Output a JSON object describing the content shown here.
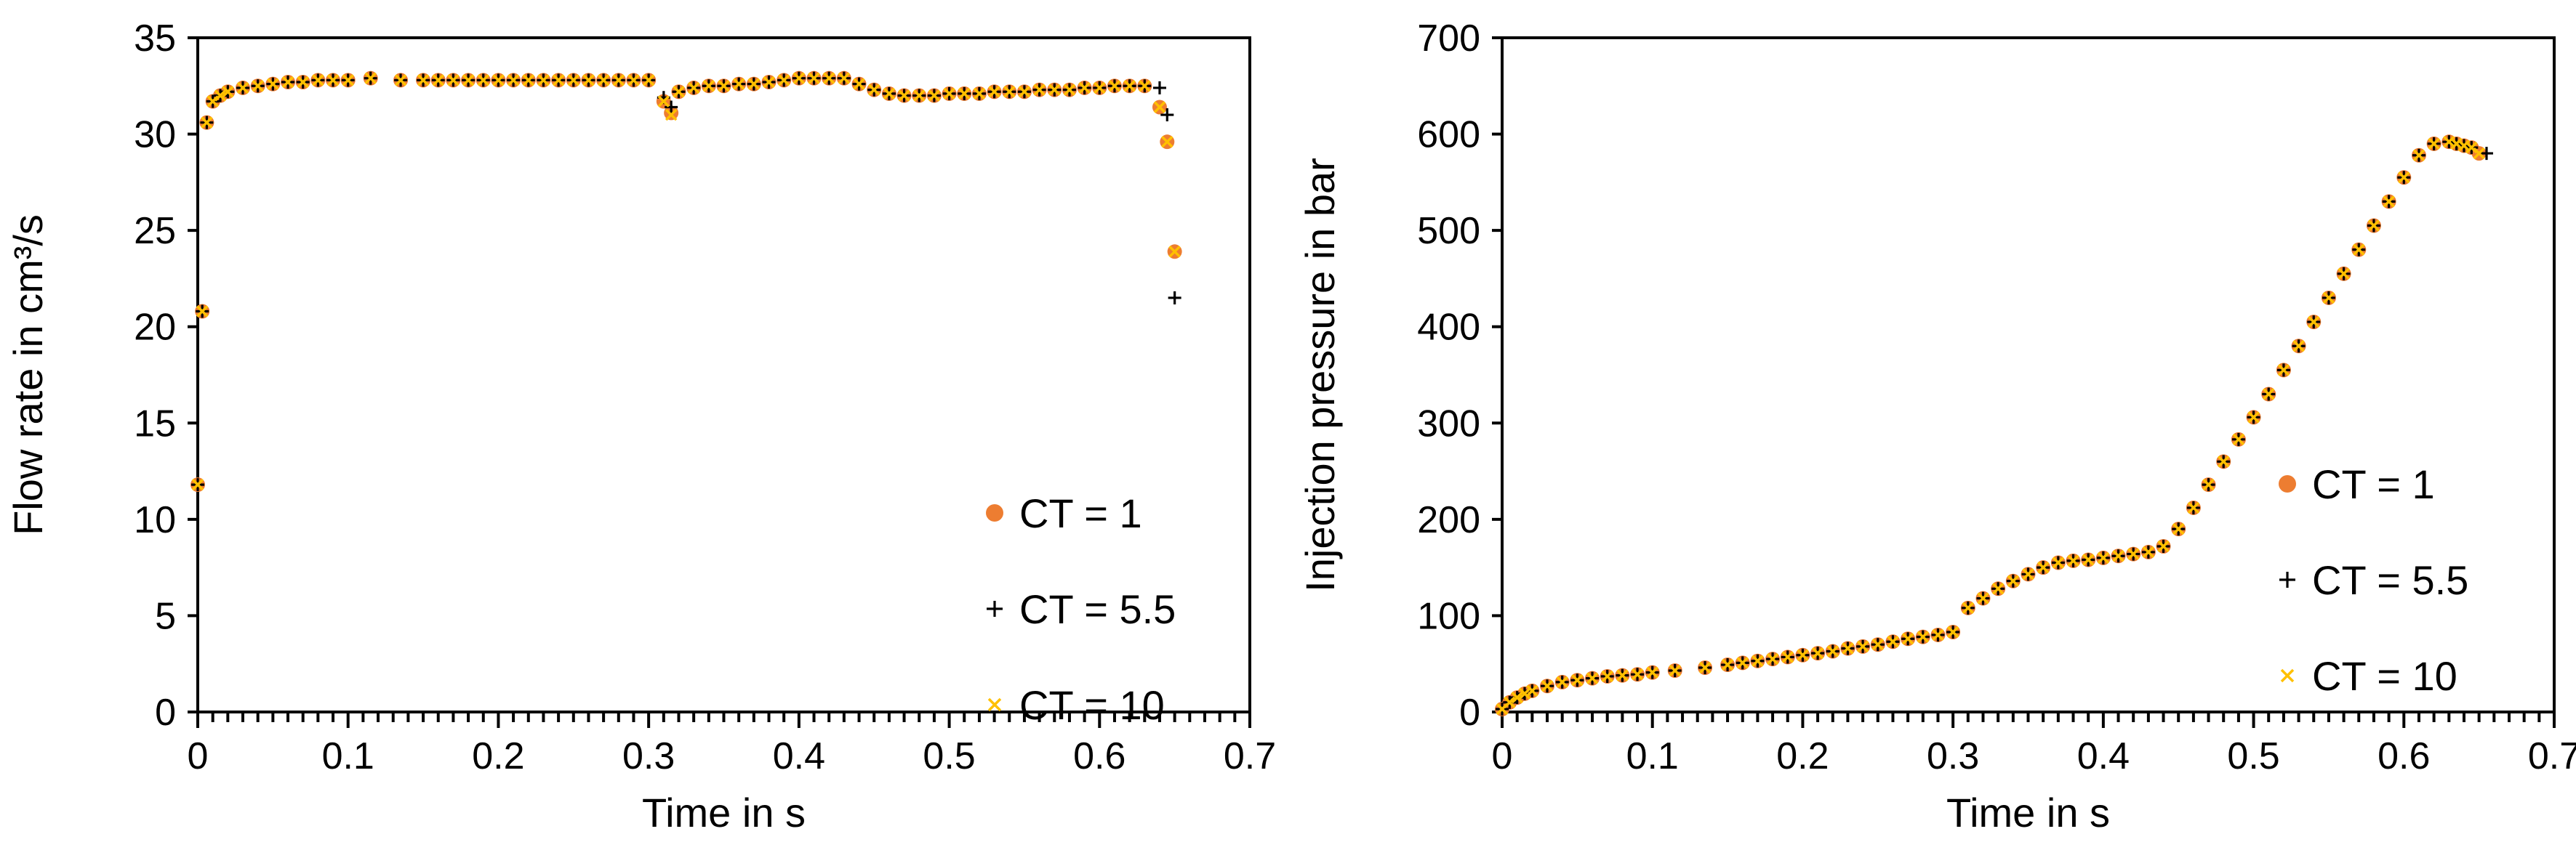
{
  "chart_data": [
    {
      "type": "scatter",
      "xlabel": "Time in s",
      "ylabel": "Flow rate in cm³/s",
      "xlim": [
        0,
        0.7
      ],
      "ylim": [
        0,
        35
      ],
      "xticks": [
        "0",
        "0.1",
        "0.2",
        "0.3",
        "0.4",
        "0.5",
        "0.6",
        "0.7"
      ],
      "yticks": [
        "0",
        "5",
        "10",
        "15",
        "20",
        "25",
        "30",
        "35"
      ],
      "legend": "bottom-right",
      "grid": false,
      "series": [
        {
          "name": "CT = 1",
          "marker": "circle",
          "color": "#ED7D31",
          "x": [
            0.0,
            0.003,
            0.006,
            0.01,
            0.015,
            0.02,
            0.03,
            0.04,
            0.05,
            0.06,
            0.07,
            0.08,
            0.09,
            0.1,
            0.115,
            0.135,
            0.15,
            0.16,
            0.17,
            0.18,
            0.19,
            0.2,
            0.21,
            0.22,
            0.23,
            0.24,
            0.25,
            0.26,
            0.27,
            0.28,
            0.29,
            0.3,
            0.31,
            0.315,
            0.32,
            0.33,
            0.34,
            0.35,
            0.36,
            0.37,
            0.38,
            0.39,
            0.4,
            0.41,
            0.42,
            0.43,
            0.44,
            0.45,
            0.46,
            0.47,
            0.48,
            0.49,
            0.5,
            0.51,
            0.52,
            0.53,
            0.54,
            0.55,
            0.56,
            0.57,
            0.58,
            0.59,
            0.6,
            0.61,
            0.62,
            0.63,
            0.64,
            0.645,
            0.65
          ],
          "y": [
            11.8,
            20.8,
            30.6,
            31.7,
            32.0,
            32.2,
            32.4,
            32.5,
            32.6,
            32.7,
            32.7,
            32.8,
            32.8,
            32.8,
            32.9,
            32.8,
            32.8,
            32.8,
            32.8,
            32.8,
            32.8,
            32.8,
            32.8,
            32.8,
            32.8,
            32.8,
            32.8,
            32.8,
            32.8,
            32.8,
            32.8,
            32.8,
            31.7,
            31.1,
            32.2,
            32.4,
            32.5,
            32.5,
            32.6,
            32.6,
            32.7,
            32.8,
            32.9,
            32.9,
            32.9,
            32.9,
            32.6,
            32.3,
            32.1,
            32.0,
            32.0,
            32.0,
            32.1,
            32.1,
            32.1,
            32.2,
            32.2,
            32.2,
            32.3,
            32.3,
            32.3,
            32.4,
            32.4,
            32.5,
            32.5,
            32.5,
            31.4,
            29.6,
            23.9
          ]
        },
        {
          "name": "CT = 5.5",
          "marker": "plus",
          "color": "#000000",
          "x": [
            0.0,
            0.003,
            0.006,
            0.01,
            0.015,
            0.02,
            0.03,
            0.04,
            0.05,
            0.06,
            0.07,
            0.08,
            0.09,
            0.1,
            0.115,
            0.135,
            0.15,
            0.16,
            0.17,
            0.18,
            0.19,
            0.2,
            0.21,
            0.22,
            0.23,
            0.24,
            0.25,
            0.26,
            0.27,
            0.28,
            0.29,
            0.3,
            0.31,
            0.315,
            0.32,
            0.33,
            0.34,
            0.35,
            0.36,
            0.37,
            0.38,
            0.39,
            0.4,
            0.41,
            0.42,
            0.43,
            0.44,
            0.45,
            0.46,
            0.47,
            0.48,
            0.49,
            0.5,
            0.51,
            0.52,
            0.53,
            0.54,
            0.55,
            0.56,
            0.57,
            0.58,
            0.59,
            0.6,
            0.61,
            0.62,
            0.63,
            0.64,
            0.645,
            0.65
          ],
          "y": [
            11.8,
            20.8,
            30.6,
            31.7,
            32.0,
            32.2,
            32.4,
            32.5,
            32.6,
            32.7,
            32.7,
            32.8,
            32.8,
            32.8,
            32.9,
            32.8,
            32.8,
            32.8,
            32.8,
            32.8,
            32.8,
            32.8,
            32.8,
            32.8,
            32.8,
            32.8,
            32.8,
            32.8,
            32.8,
            32.8,
            32.8,
            32.8,
            31.9,
            31.4,
            32.2,
            32.4,
            32.5,
            32.5,
            32.6,
            32.6,
            32.7,
            32.8,
            32.9,
            32.9,
            32.9,
            32.9,
            32.6,
            32.3,
            32.1,
            32.0,
            32.0,
            32.0,
            32.1,
            32.1,
            32.1,
            32.2,
            32.2,
            32.2,
            32.3,
            32.3,
            32.3,
            32.4,
            32.4,
            32.5,
            32.5,
            32.5,
            32.4,
            31.0,
            21.5
          ]
        },
        {
          "name": "CT = 10",
          "marker": "x",
          "color": "#FFC000",
          "x": [
            0.0,
            0.003,
            0.006,
            0.01,
            0.015,
            0.02,
            0.03,
            0.04,
            0.05,
            0.06,
            0.07,
            0.08,
            0.09,
            0.1,
            0.115,
            0.135,
            0.15,
            0.16,
            0.17,
            0.18,
            0.19,
            0.2,
            0.21,
            0.22,
            0.23,
            0.24,
            0.25,
            0.26,
            0.27,
            0.28,
            0.29,
            0.3,
            0.31,
            0.315,
            0.32,
            0.33,
            0.34,
            0.35,
            0.36,
            0.37,
            0.38,
            0.39,
            0.4,
            0.41,
            0.42,
            0.43,
            0.44,
            0.45,
            0.46,
            0.47,
            0.48,
            0.49,
            0.5,
            0.51,
            0.52,
            0.53,
            0.54,
            0.55,
            0.56,
            0.57,
            0.58,
            0.59,
            0.6,
            0.61,
            0.62,
            0.63,
            0.64,
            0.645,
            0.65
          ],
          "y": [
            11.8,
            20.8,
            30.6,
            31.7,
            32.0,
            32.2,
            32.4,
            32.5,
            32.6,
            32.7,
            32.7,
            32.8,
            32.8,
            32.8,
            32.9,
            32.8,
            32.8,
            32.8,
            32.8,
            32.8,
            32.8,
            32.8,
            32.8,
            32.8,
            32.8,
            32.8,
            32.8,
            32.8,
            32.8,
            32.8,
            32.8,
            32.8,
            31.7,
            31.0,
            32.2,
            32.4,
            32.5,
            32.5,
            32.6,
            32.6,
            32.7,
            32.8,
            32.9,
            32.9,
            32.9,
            32.9,
            32.6,
            32.3,
            32.1,
            32.0,
            32.0,
            32.0,
            32.1,
            32.1,
            32.1,
            32.2,
            32.2,
            32.2,
            32.3,
            32.3,
            32.3,
            32.4,
            32.4,
            32.5,
            32.5,
            32.5,
            31.4,
            29.6,
            23.9
          ]
        }
      ]
    },
    {
      "type": "scatter",
      "xlabel": "Time in s",
      "ylabel": "Injection pressure in bar",
      "xlim": [
        0,
        0.7
      ],
      "ylim": [
        0,
        700
      ],
      "xticks": [
        "0",
        "0.1",
        "0.2",
        "0.3",
        "0.4",
        "0.5",
        "0.6",
        "0.7"
      ],
      "yticks": [
        "0",
        "100",
        "200",
        "300",
        "400",
        "500",
        "600",
        "700"
      ],
      "legend": "right",
      "grid": false,
      "series": [
        {
          "name": "CT = 1",
          "marker": "circle",
          "color": "#ED7D31",
          "x": [
            0.0,
            0.005,
            0.01,
            0.015,
            0.02,
            0.03,
            0.04,
            0.05,
            0.06,
            0.07,
            0.08,
            0.09,
            0.1,
            0.115,
            0.135,
            0.15,
            0.16,
            0.17,
            0.18,
            0.19,
            0.2,
            0.21,
            0.22,
            0.23,
            0.24,
            0.25,
            0.26,
            0.27,
            0.28,
            0.29,
            0.3,
            0.31,
            0.32,
            0.33,
            0.34,
            0.35,
            0.36,
            0.37,
            0.38,
            0.39,
            0.4,
            0.41,
            0.42,
            0.43,
            0.44,
            0.45,
            0.46,
            0.47,
            0.48,
            0.49,
            0.5,
            0.51,
            0.52,
            0.53,
            0.54,
            0.55,
            0.56,
            0.57,
            0.58,
            0.59,
            0.6,
            0.61,
            0.62,
            0.63,
            0.635,
            0.64,
            0.645,
            0.65
          ],
          "y": [
            3,
            10,
            15,
            19,
            22,
            27,
            31,
            33,
            35,
            37,
            38,
            39,
            41,
            43,
            46,
            49,
            51,
            53,
            55,
            57,
            59,
            61,
            63,
            66,
            68,
            70,
            73,
            76,
            78,
            80,
            83,
            108,
            118,
            128,
            136,
            143,
            150,
            155,
            157,
            158,
            160,
            162,
            164,
            166,
            172,
            190,
            212,
            236,
            260,
            283,
            306,
            330,
            355,
            380,
            405,
            430,
            455,
            480,
            505,
            530,
            555,
            578,
            590,
            592,
            590,
            588,
            586,
            580
          ]
        },
        {
          "name": "CT = 5.5",
          "marker": "plus",
          "color": "#000000",
          "x": [
            0.0,
            0.005,
            0.01,
            0.015,
            0.02,
            0.03,
            0.04,
            0.05,
            0.06,
            0.07,
            0.08,
            0.09,
            0.1,
            0.115,
            0.135,
            0.15,
            0.16,
            0.17,
            0.18,
            0.19,
            0.2,
            0.21,
            0.22,
            0.23,
            0.24,
            0.25,
            0.26,
            0.27,
            0.28,
            0.29,
            0.3,
            0.31,
            0.32,
            0.33,
            0.34,
            0.35,
            0.36,
            0.37,
            0.38,
            0.39,
            0.4,
            0.41,
            0.42,
            0.43,
            0.44,
            0.45,
            0.46,
            0.47,
            0.48,
            0.49,
            0.5,
            0.51,
            0.52,
            0.53,
            0.54,
            0.55,
            0.56,
            0.57,
            0.58,
            0.59,
            0.6,
            0.61,
            0.62,
            0.63,
            0.635,
            0.64,
            0.645,
            0.655
          ],
          "y": [
            3,
            10,
            15,
            19,
            22,
            27,
            31,
            33,
            35,
            37,
            38,
            39,
            41,
            43,
            46,
            49,
            51,
            53,
            55,
            57,
            59,
            61,
            63,
            66,
            68,
            70,
            73,
            76,
            78,
            80,
            83,
            108,
            118,
            128,
            136,
            143,
            150,
            155,
            157,
            158,
            160,
            162,
            164,
            166,
            172,
            190,
            212,
            236,
            260,
            283,
            306,
            330,
            355,
            380,
            405,
            430,
            455,
            480,
            505,
            530,
            555,
            578,
            590,
            592,
            590,
            588,
            586,
            580
          ]
        },
        {
          "name": "CT = 10",
          "marker": "x",
          "color": "#FFC000",
          "x": [
            0.0,
            0.005,
            0.01,
            0.015,
            0.02,
            0.03,
            0.04,
            0.05,
            0.06,
            0.07,
            0.08,
            0.09,
            0.1,
            0.115,
            0.135,
            0.15,
            0.16,
            0.17,
            0.18,
            0.19,
            0.2,
            0.21,
            0.22,
            0.23,
            0.24,
            0.25,
            0.26,
            0.27,
            0.28,
            0.29,
            0.3,
            0.31,
            0.32,
            0.33,
            0.34,
            0.35,
            0.36,
            0.37,
            0.38,
            0.39,
            0.4,
            0.41,
            0.42,
            0.43,
            0.44,
            0.45,
            0.46,
            0.47,
            0.48,
            0.49,
            0.5,
            0.51,
            0.52,
            0.53,
            0.54,
            0.55,
            0.56,
            0.57,
            0.58,
            0.59,
            0.6,
            0.61,
            0.62,
            0.63,
            0.635,
            0.64,
            0.645,
            0.65
          ],
          "y": [
            3,
            10,
            15,
            19,
            22,
            27,
            31,
            33,
            35,
            37,
            38,
            39,
            41,
            43,
            46,
            49,
            51,
            53,
            55,
            57,
            59,
            61,
            63,
            66,
            68,
            70,
            73,
            76,
            78,
            80,
            83,
            108,
            118,
            128,
            136,
            143,
            150,
            155,
            157,
            158,
            160,
            162,
            164,
            166,
            172,
            190,
            212,
            236,
            260,
            283,
            306,
            330,
            355,
            380,
            405,
            430,
            455,
            480,
            505,
            530,
            555,
            578,
            590,
            592,
            590,
            588,
            586,
            580
          ]
        }
      ]
    }
  ]
}
